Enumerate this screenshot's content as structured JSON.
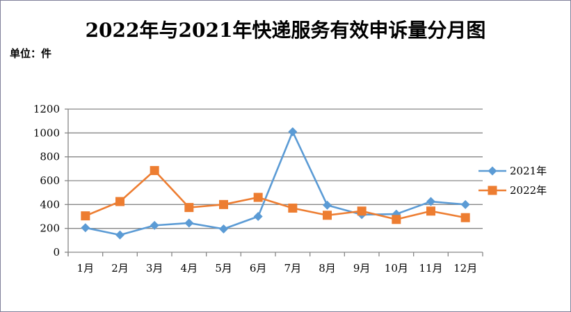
{
  "chart_data": {
    "type": "line",
    "title": "2022年与2021年快递服务有效申诉量分月图",
    "unit_label": "单位：件",
    "categories": [
      "1月",
      "2月",
      "3月",
      "4月",
      "5月",
      "6月",
      "7月",
      "8月",
      "9月",
      "10月",
      "11月",
      "12月"
    ],
    "series": [
      {
        "name": "2021年",
        "color": "#5b9bd5",
        "marker": "diamond",
        "values": [
          205,
          145,
          225,
          245,
          195,
          300,
          1010,
          395,
          315,
          320,
          425,
          400
        ]
      },
      {
        "name": "2022年",
        "color": "#ed7d31",
        "marker": "square",
        "values": [
          305,
          425,
          685,
          375,
          400,
          460,
          370,
          310,
          345,
          275,
          345,
          290
        ]
      }
    ],
    "ylim": [
      0,
      1200
    ],
    "yticks": [
      0,
      200,
      400,
      600,
      800,
      1000,
      1200
    ],
    "grid": true,
    "legend_position": "right"
  }
}
